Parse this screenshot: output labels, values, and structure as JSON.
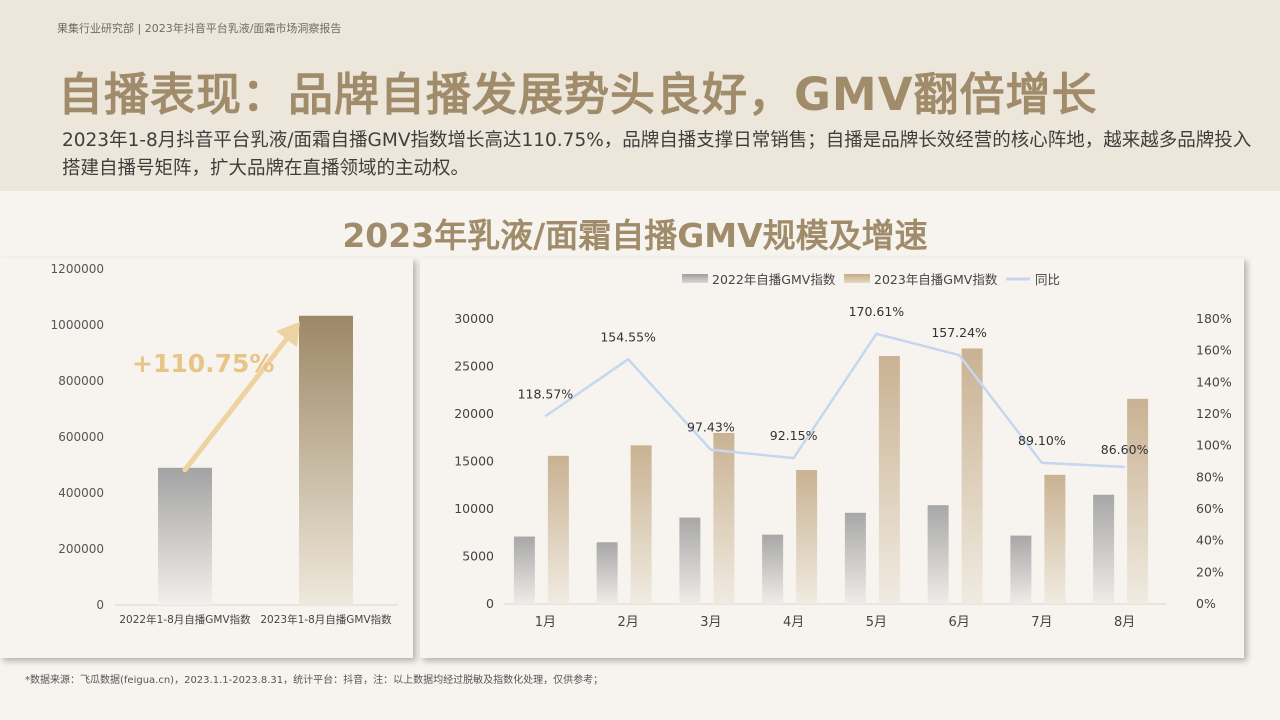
{
  "header": {
    "tag": "果集行业研究部 | 2023年抖音平台乳液/面霜市场洞察报告",
    "title": "自播表现：品牌自播发展势头良好，GMV翻倍增长",
    "description": "2023年1-8月抖音平台乳液/面霜自播GMV指数增长高达110.75%，品牌自播支撑日常销售；自播是品牌长效经营的核心阵地，越来越多品牌投入搭建自播号矩阵，扩大品牌在直播领域的主动权。"
  },
  "section_title": "2023年乳液/面霜自播GMV规模及增速",
  "footnote": "*数据来源：飞瓜数据(feigua.cn)，2023.1.1-2023.8.31，统计平台：抖音，注：以上数据均经过脱敏及指数化处理，仅供参考；",
  "colors": {
    "accent": "#a08c6a",
    "gray_bar": "#a9a9a9",
    "tan_bar": "#c8b292",
    "line": "#c5d6ef",
    "arrow": "#eed2a0",
    "growth_text": "#e8c488"
  },
  "chart_data": [
    {
      "type": "bar",
      "categories": [
        "2022年1-8月自播GMV指数",
        "2023年1-8月自播GMV指数"
      ],
      "values": [
        490000,
        1033000
      ],
      "ylim": [
        0,
        1200000
      ],
      "yticks": [
        "0",
        "200000",
        "400000",
        "600000",
        "800000",
        "1000000",
        "1200000"
      ],
      "annotation": "+110.75%"
    },
    {
      "type": "bar",
      "categories": [
        "1月",
        "2月",
        "3月",
        "4月",
        "5月",
        "6月",
        "7月",
        "8月"
      ],
      "series": [
        {
          "name": "2022年自播GMV指数",
          "values": [
            7100,
            6500,
            9100,
            7300,
            9600,
            10400,
            7200,
            11500
          ]
        },
        {
          "name": "2023年自播GMV指数",
          "values": [
            15600,
            16700,
            18000,
            14100,
            26100,
            26900,
            13600,
            21600
          ]
        },
        {
          "name": "同比",
          "type": "line",
          "axis": "right",
          "values": [
            118.57,
            154.55,
            97.43,
            92.15,
            170.61,
            157.24,
            89.1,
            86.6
          ],
          "labels": [
            "118.57%",
            "154.55%",
            "97.43%",
            "92.15%",
            "170.61%",
            "157.24%",
            "89.10%",
            "86.60%"
          ]
        }
      ],
      "ylim": [
        0,
        30000
      ],
      "yticks": [
        "0",
        "5000",
        "10000",
        "15000",
        "20000",
        "25000",
        "30000"
      ],
      "y2lim": [
        0,
        180
      ],
      "y2ticks": [
        "0%",
        "20%",
        "40%",
        "60%",
        "80%",
        "100%",
        "120%",
        "140%",
        "160%",
        "180%"
      ],
      "legend": "top"
    }
  ]
}
